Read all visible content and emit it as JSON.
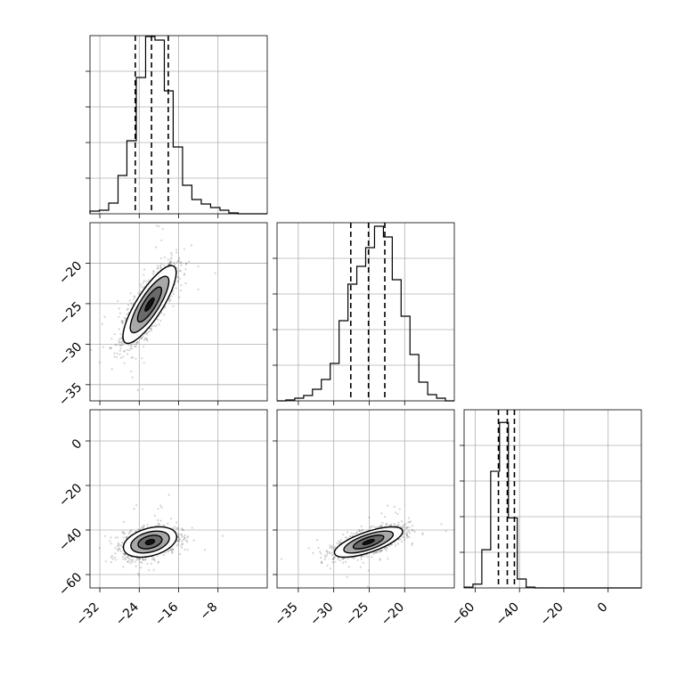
{
  "chart_data": [
    {
      "type": "histogram",
      "position": "top-left",
      "xlim": [
        -34,
        2
      ],
      "ylim": [
        0,
        0.2
      ],
      "xticks": [
        -32,
        -24,
        -16,
        -8
      ],
      "ytick_count": 4,
      "quantiles": [
        -24.8,
        -21.5,
        -18.1
      ],
      "bins_x": [
        -34,
        -32.1,
        -30.2,
        -28.3,
        -26.5,
        -24.6,
        -22.7,
        -20.8,
        -18.9,
        -17.1,
        -15.2,
        -13.3,
        -11.4,
        -9.5,
        -7.6,
        -5.8,
        -3.9,
        -2.0,
        2
      ],
      "bins_y": [
        0.003,
        0.004,
        0.012,
        0.043,
        0.082,
        0.153,
        0.199,
        0.195,
        0.138,
        0.075,
        0.032,
        0.016,
        0.011,
        0.007,
        0.004,
        0.001,
        0.0,
        0.0
      ]
    },
    {
      "type": "histogram",
      "position": "middle",
      "xlim": [
        -38,
        -13
      ],
      "ylim": [
        0,
        0.2
      ],
      "xticks": [
        -35,
        -30,
        -25,
        -20
      ],
      "ytick_count": 4,
      "quantiles": [
        -27.6,
        -25.1,
        -22.8
      ],
      "bins_x": [
        -38,
        -36.75,
        -35.5,
        -34.25,
        -33,
        -31.75,
        -30.5,
        -29.25,
        -28,
        -26.75,
        -25.5,
        -24.25,
        -23,
        -21.75,
        -20.5,
        -19.25,
        -18,
        -16.75,
        -15.5,
        -14.25,
        -13
      ],
      "bins_y": [
        0.0,
        0.001,
        0.003,
        0.006,
        0.013,
        0.024,
        0.042,
        0.09,
        0.131,
        0.151,
        0.172,
        0.196,
        0.184,
        0.136,
        0.095,
        0.052,
        0.021,
        0.007,
        0.003,
        0.0
      ]
    },
    {
      "type": "histogram",
      "position": "bottom-right",
      "xlim": [
        -65,
        15
      ],
      "ylim": [
        0,
        0.42
      ],
      "xticks": [
        -60,
        -40,
        -20,
        0
      ],
      "ytick_count": 4,
      "quantiles": [
        -49.5,
        -45.5,
        -42.3
      ],
      "bins_x": [
        -65,
        -61,
        -57,
        -53,
        -49,
        -45,
        -41,
        -37,
        -33,
        -29,
        -25,
        -21,
        -17,
        -13,
        -9,
        -5,
        -1,
        3,
        7,
        11,
        15
      ],
      "bins_y": [
        0.002,
        0.009,
        0.09,
        0.275,
        0.39,
        0.165,
        0.021,
        0.002,
        0.0,
        0.0,
        0.0,
        0.0,
        0.0,
        0.0,
        0.0,
        0.0,
        0.0,
        0.0,
        0.0,
        0.0
      ]
    },
    {
      "type": "scatter",
      "position": "middle-left",
      "xlim": [
        -34,
        2
      ],
      "ylim": [
        -37,
        -15
      ],
      "xticks": [
        -32,
        -24,
        -16,
        -8
      ],
      "yticks": [
        -35,
        -30,
        -25,
        -20
      ],
      "center": [
        -21.9,
        -25.1
      ],
      "spread": [
        2.7,
        2.4
      ],
      "correlation": 0.82
    },
    {
      "type": "scatter",
      "position": "bottom-left",
      "xlim": [
        -34,
        2
      ],
      "ylim": [
        -66,
        14
      ],
      "xticks": [
        -32,
        -24,
        -16,
        -8
      ],
      "yticks": [
        -60,
        -40,
        -20,
        0
      ],
      "center": [
        -21.8,
        -45.4
      ],
      "spread": [
        2.7,
        3.4
      ],
      "correlation": 0.35
    },
    {
      "type": "scatter",
      "position": "bottom-middle",
      "xlim": [
        -38,
        -13
      ],
      "ylim": [
        -66,
        14
      ],
      "xticks": [
        -35,
        -30,
        -25,
        -20
      ],
      "yticks": [
        -60,
        -40,
        -20,
        0
      ],
      "center": [
        -25.1,
        -45.4
      ],
      "spread": [
        2.4,
        3.4
      ],
      "correlation": 0.7
    }
  ]
}
